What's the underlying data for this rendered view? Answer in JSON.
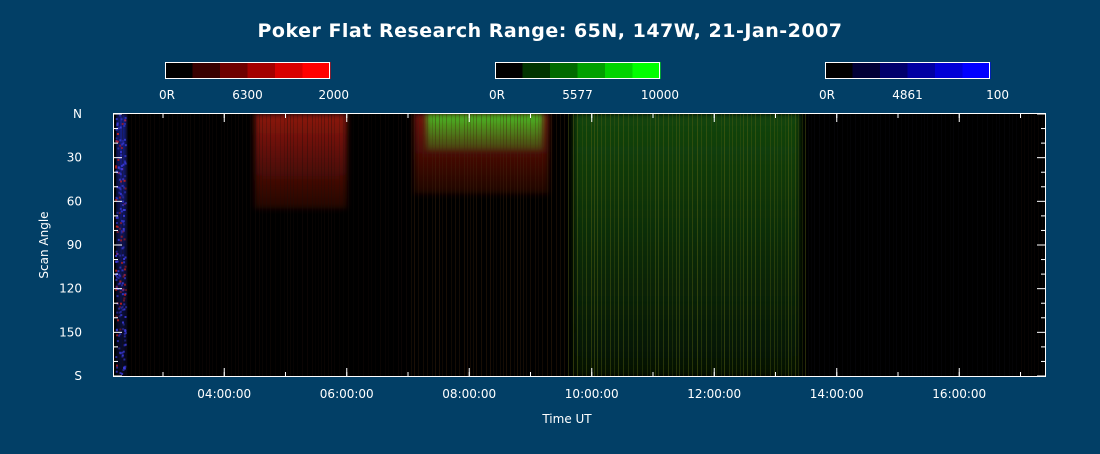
{
  "chart_data": {
    "type": "heatmap",
    "title": "Poker Flat Research Range: 65N, 147W, 21-Jan-2007",
    "xlabel": "Time UT",
    "ylabel": "Scan Angle",
    "x_ticks": [
      "04:00:00",
      "06:00:00",
      "08:00:00",
      "10:00:00",
      "12:00:00",
      "14:00:00",
      "16:00:00"
    ],
    "x_tick_hours": [
      4,
      6,
      8,
      10,
      12,
      14,
      16
    ],
    "xlim_hours": [
      2.2,
      17.4
    ],
    "y_ticks": [
      "N",
      "30",
      "60",
      "90",
      "120",
      "150",
      "S"
    ],
    "y_tick_values": [
      0,
      30,
      60,
      90,
      120,
      150,
      180
    ],
    "ylim": [
      0,
      180
    ],
    "colorbars": [
      {
        "channel": "red",
        "label_min": "0R",
        "label_mid": "6300",
        "label_max": "2000",
        "colors": [
          "#000000",
          "#380000",
          "#6e0000",
          "#a30000",
          "#d80000",
          "#ff0000"
        ]
      },
      {
        "channel": "green",
        "label_min": "0R",
        "label_mid": "5577",
        "label_max": "10000",
        "colors": [
          "#000000",
          "#003400",
          "#006a00",
          "#00a000",
          "#00d400",
          "#00ff00"
        ]
      },
      {
        "channel": "blue",
        "label_min": "0R",
        "label_mid": "4861",
        "label_max": "100",
        "colors": [
          "#000000",
          "#000036",
          "#00006c",
          "#0000a2",
          "#0000d6",
          "#0000ff"
        ]
      }
    ],
    "emission_features": [
      {
        "channel": "red",
        "t0": 4.5,
        "t1": 6.0,
        "angle0": 0,
        "angle1": 65,
        "intensity": 0.55
      },
      {
        "channel": "red",
        "t0": 7.1,
        "t1": 9.3,
        "angle0": 0,
        "angle1": 55,
        "intensity": 0.45
      },
      {
        "channel": "green",
        "t0": 7.3,
        "t1": 9.2,
        "angle0": 0,
        "angle1": 25,
        "intensity": 0.8
      },
      {
        "channel": "green",
        "t0": 9.7,
        "t1": 13.4,
        "angle0": 0,
        "angle1": 180,
        "intensity": 0.3
      },
      {
        "channel": "blue",
        "t0": 2.25,
        "t1": 2.4,
        "angle0": 0,
        "angle1": 180,
        "intensity": 0.6
      }
    ]
  }
}
